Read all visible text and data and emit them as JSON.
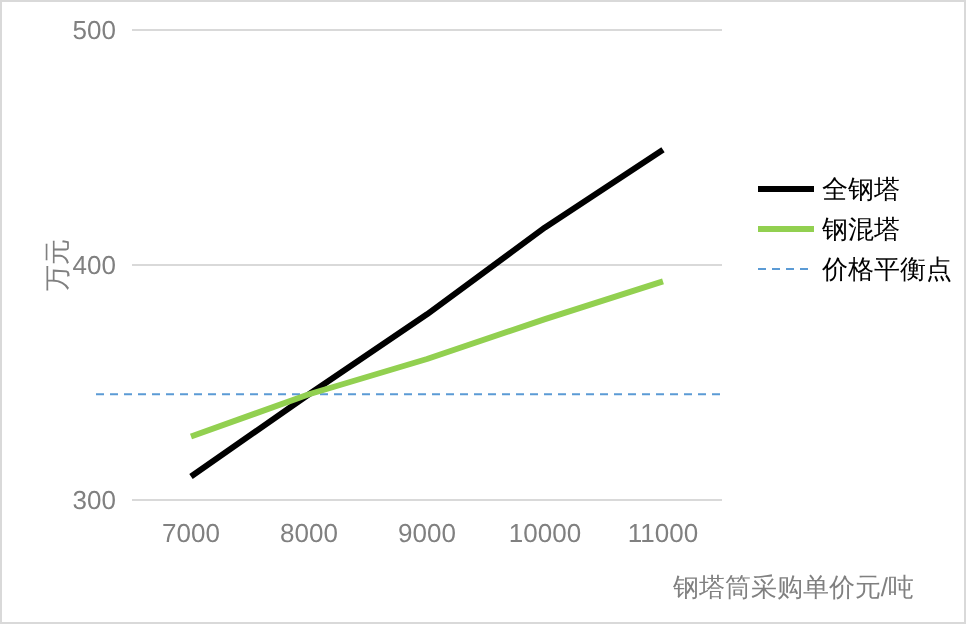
{
  "chart_data": {
    "type": "line",
    "ylabel": "万元",
    "xlabel": "钢塔筒采购单价元/吨",
    "categories": [
      "7000",
      "8000",
      "9000",
      "10000",
      "11000"
    ],
    "series": [
      {
        "name": "全钢塔",
        "color": "#000000",
        "values": [
          310,
          345,
          379,
          416,
          449
        ]
      },
      {
        "name": "钢混塔",
        "color": "#92d050",
        "values": [
          327,
          345,
          360,
          377,
          393
        ]
      }
    ],
    "ylim": [
      300,
      500
    ],
    "yticks": [
      300,
      400,
      500
    ],
    "grid": "y",
    "legend": "right",
    "marker": "none",
    "line_style": "solid",
    "ref_lines": [
      {
        "axis": "y",
        "value": 345,
        "label": "价格平衡点",
        "color": "#5b9bd5",
        "line_style": "dashed"
      }
    ]
  }
}
